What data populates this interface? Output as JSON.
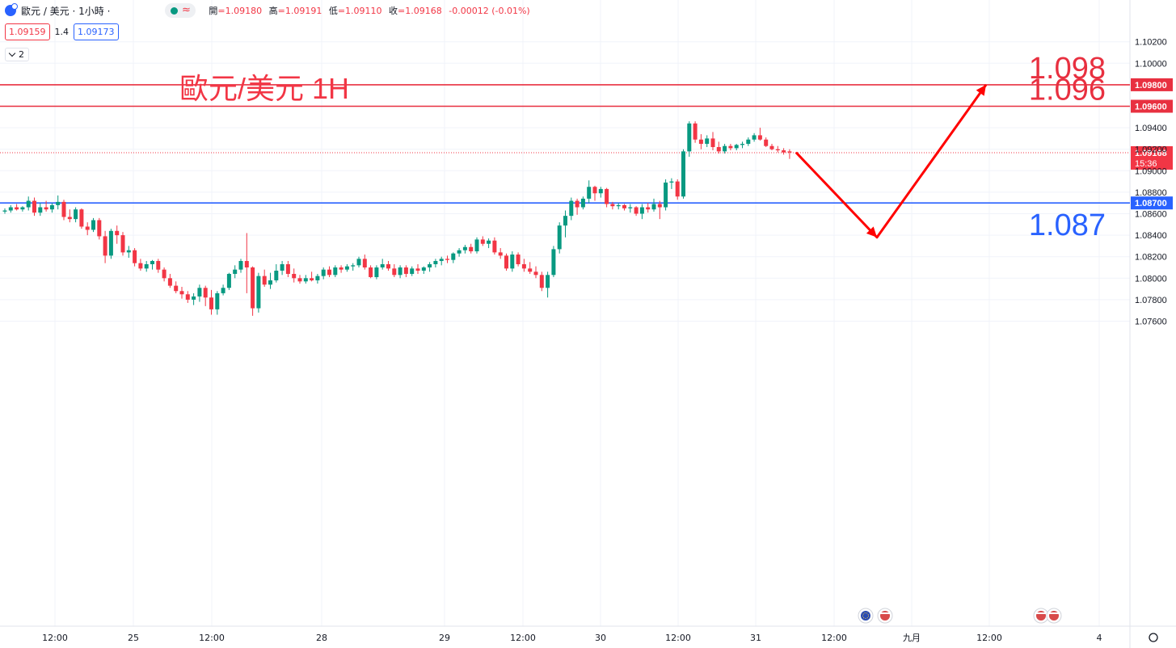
{
  "header": {
    "symbol": "歐元 / 美元 · 1小時 ·",
    "open_label": "開",
    "open": "=1.09180",
    "high_label": "高",
    "high": "=1.09191",
    "low_label": "低",
    "low": "=1.09110",
    "close_label": "收",
    "close": "=1.09168",
    "change": "-0.00012 (-0.01%)",
    "wave_icon": "≈"
  },
  "quote": {
    "sell": "1.09159",
    "spread": "1.4",
    "buy": "1.09173"
  },
  "indicators_toggle": "2",
  "colors": {
    "up": "#089981",
    "down": "#f23645",
    "support": "#2962ff",
    "resistance": "#e83040",
    "arrow": "#ff0000"
  },
  "chart_data": {
    "type": "candlestick",
    "title": "歐元/美元 1H",
    "y_axis": {
      "ticks": [
        "1.10200",
        "1.10000",
        "1.09400",
        "1.09200",
        "1.09000",
        "1.08800",
        "1.08600",
        "1.08400",
        "1.08200",
        "1.08000",
        "1.07800",
        "1.07600"
      ],
      "ylim": [
        1.0743,
        1.1037
      ]
    },
    "x_axis": {
      "ticks": [
        "12:00",
        "25",
        "12:00",
        "28",
        "29",
        "12:00",
        "30",
        "12:00",
        "31",
        "12:00",
        "九月",
        "12:00",
        "4"
      ]
    },
    "last_price": {
      "value": "1.09168",
      "countdown": "15:36"
    },
    "levels": [
      {
        "value": "1.09800",
        "label": "1.098",
        "kind": "resistance"
      },
      {
        "value": "1.09600",
        "label": "1.096",
        "kind": "resistance"
      },
      {
        "value": "1.08700",
        "label": "1.087",
        "kind": "support"
      }
    ],
    "projection_arrow": [
      [
        1.0917,
        1.0838
      ],
      [
        1.0838,
        1.098
      ]
    ],
    "candles": [
      [
        1.0862,
        1.0865,
        1.086,
        1.0863
      ],
      [
        1.0863,
        1.0868,
        1.0861,
        1.0866
      ],
      [
        1.0866,
        1.0869,
        1.0863,
        1.0864
      ],
      [
        1.0864,
        1.0867,
        1.0862,
        1.0866
      ],
      [
        1.0866,
        1.0876,
        1.0863,
        1.0872
      ],
      [
        1.0872,
        1.0875,
        1.0858,
        1.0861
      ],
      [
        1.0861,
        1.087,
        1.0858,
        1.0866
      ],
      [
        1.0866,
        1.0872,
        1.0862,
        1.0864
      ],
      [
        1.0864,
        1.087,
        1.0861,
        1.0868
      ],
      [
        1.0868,
        1.0877,
        1.0864,
        1.0871
      ],
      [
        1.0871,
        1.0873,
        1.0854,
        1.0857
      ],
      [
        1.0857,
        1.0864,
        1.0852,
        1.0855
      ],
      [
        1.0855,
        1.0866,
        1.0852,
        1.0864
      ],
      [
        1.0864,
        1.0865,
        1.0846,
        1.0848
      ],
      [
        1.0848,
        1.0852,
        1.084,
        1.0845
      ],
      [
        1.0845,
        1.0856,
        1.0843,
        1.0854
      ],
      [
        1.0854,
        1.0856,
        1.0836,
        1.0839
      ],
      [
        1.0839,
        1.0844,
        1.0814,
        1.0821
      ],
      [
        1.0821,
        1.0846,
        1.0818,
        1.0844
      ],
      [
        1.0844,
        1.0849,
        1.0832,
        1.084
      ],
      [
        1.084,
        1.0843,
        1.0821,
        1.0824
      ],
      [
        1.0824,
        1.083,
        1.0819,
        1.0826
      ],
      [
        1.0826,
        1.0828,
        1.0811,
        1.0814
      ],
      [
        1.0814,
        1.0818,
        1.0807,
        1.0809
      ],
      [
        1.0809,
        1.0816,
        1.0806,
        1.0813
      ],
      [
        1.0813,
        1.0817,
        1.0808,
        1.0816
      ],
      [
        1.0816,
        1.0818,
        1.0805,
        1.0808
      ],
      [
        1.0808,
        1.081,
        1.0797,
        1.08
      ],
      [
        1.08,
        1.0804,
        1.0791,
        1.0793
      ],
      [
        1.0793,
        1.0797,
        1.0786,
        1.0788
      ],
      [
        1.0788,
        1.0792,
        1.0781,
        1.0785
      ],
      [
        1.0785,
        1.0788,
        1.0777,
        1.078
      ],
      [
        1.078,
        1.0786,
        1.0775,
        1.0783
      ],
      [
        1.0783,
        1.0794,
        1.0778,
        1.0791
      ],
      [
        1.0791,
        1.0793,
        1.0774,
        1.0782
      ],
      [
        1.0782,
        1.0789,
        1.0766,
        1.0771
      ],
      [
        1.0771,
        1.0788,
        1.0766,
        1.0786
      ],
      [
        1.0786,
        1.0794,
        1.0784,
        1.0791
      ],
      [
        1.0791,
        1.0805,
        1.0789,
        1.0804
      ],
      [
        1.0804,
        1.0812,
        1.08,
        1.0808
      ],
      [
        1.0808,
        1.0818,
        1.0805,
        1.0816
      ],
      [
        1.0816,
        1.0842,
        1.0786,
        1.081
      ],
      [
        1.081,
        1.0811,
        1.0765,
        1.0772
      ],
      [
        1.0772,
        1.0805,
        1.0768,
        1.0802
      ],
      [
        1.0802,
        1.0808,
        1.0792,
        1.0794
      ],
      [
        1.0794,
        1.0805,
        1.079,
        1.0798
      ],
      [
        1.0798,
        1.0813,
        1.0796,
        1.0807
      ],
      [
        1.0807,
        1.0816,
        1.0803,
        1.0813
      ],
      [
        1.0813,
        1.0816,
        1.0801,
        1.0804
      ],
      [
        1.0804,
        1.0809,
        1.0796,
        1.08
      ],
      [
        1.08,
        1.0803,
        1.0795,
        1.0797
      ],
      [
        1.0797,
        1.0803,
        1.0795,
        1.08
      ],
      [
        1.08,
        1.0806,
        1.0797,
        1.0798
      ],
      [
        1.0798,
        1.0804,
        1.0795,
        1.0802
      ],
      [
        1.0802,
        1.081,
        1.0799,
        1.0808
      ],
      [
        1.0808,
        1.0811,
        1.0801,
        1.0803
      ],
      [
        1.0803,
        1.0812,
        1.0801,
        1.081
      ],
      [
        1.081,
        1.0812,
        1.0805,
        1.0808
      ],
      [
        1.0808,
        1.0813,
        1.0806,
        1.0811
      ],
      [
        1.0811,
        1.0814,
        1.0807,
        1.0812
      ],
      [
        1.0812,
        1.082,
        1.081,
        1.0818
      ],
      [
        1.0818,
        1.0822,
        1.0808,
        1.081
      ],
      [
        1.081,
        1.0812,
        1.08,
        1.0801
      ],
      [
        1.0801,
        1.0812,
        1.0799,
        1.081
      ],
      [
        1.081,
        1.0818,
        1.0808,
        1.0813
      ],
      [
        1.0813,
        1.0816,
        1.0807,
        1.0809
      ],
      [
        1.0809,
        1.0813,
        1.0801,
        1.0803
      ],
      [
        1.0803,
        1.0812,
        1.08,
        1.081
      ],
      [
        1.081,
        1.0812,
        1.0801,
        1.0804
      ],
      [
        1.0804,
        1.0811,
        1.0802,
        1.0809
      ],
      [
        1.0809,
        1.0813,
        1.0804,
        1.0807
      ],
      [
        1.0807,
        1.0811,
        1.0804,
        1.081
      ],
      [
        1.081,
        1.0815,
        1.0806,
        1.0813
      ],
      [
        1.0813,
        1.0818,
        1.081,
        1.0816
      ],
      [
        1.0816,
        1.082,
        1.0812,
        1.0818
      ],
      [
        1.0818,
        1.0821,
        1.0814,
        1.0817
      ],
      [
        1.0817,
        1.0824,
        1.0814,
        1.0823
      ],
      [
        1.0823,
        1.0828,
        1.082,
        1.0826
      ],
      [
        1.0826,
        1.0831,
        1.0823,
        1.0829
      ],
      [
        1.0829,
        1.0832,
        1.0823,
        1.0825
      ],
      [
        1.0825,
        1.0838,
        1.0823,
        1.0836
      ],
      [
        1.0836,
        1.0839,
        1.083,
        1.0832
      ],
      [
        1.0832,
        1.0837,
        1.0828,
        1.0835
      ],
      [
        1.0835,
        1.0838,
        1.0822,
        1.0824
      ],
      [
        1.0824,
        1.0828,
        1.0818,
        1.0821
      ],
      [
        1.0821,
        1.0823,
        1.0807,
        1.0809
      ],
      [
        1.0809,
        1.0825,
        1.0806,
        1.0822
      ],
      [
        1.0822,
        1.0824,
        1.0811,
        1.0813
      ],
      [
        1.0813,
        1.0818,
        1.0806,
        1.0809
      ],
      [
        1.0809,
        1.0815,
        1.0804,
        1.0806
      ],
      [
        1.0806,
        1.0811,
        1.08,
        1.0803
      ],
      [
        1.0803,
        1.0806,
        1.0788,
        1.0791
      ],
      [
        1.0791,
        1.0806,
        1.0782,
        1.0803
      ],
      [
        1.0803,
        1.083,
        1.0801,
        1.0827
      ],
      [
        1.0827,
        1.0852,
        1.0823,
        1.0849
      ],
      [
        1.0849,
        1.0863,
        1.0838,
        1.0858
      ],
      [
        1.0858,
        1.0875,
        1.0854,
        1.0872
      ],
      [
        1.0872,
        1.0874,
        1.0859,
        1.0866
      ],
      [
        1.0866,
        1.0876,
        1.0864,
        1.0874
      ],
      [
        1.0874,
        1.0891,
        1.087,
        1.0885
      ],
      [
        1.0885,
        1.0886,
        1.0872,
        1.0879
      ],
      [
        1.0879,
        1.0885,
        1.0875,
        1.0883
      ],
      [
        1.0883,
        1.0884,
        1.0866,
        1.0869
      ],
      [
        1.0869,
        1.0871,
        1.0864,
        1.0867
      ],
      [
        1.0867,
        1.087,
        1.0864,
        1.0868
      ],
      [
        1.0868,
        1.0869,
        1.0863,
        1.0865
      ],
      [
        1.0865,
        1.0869,
        1.0861,
        1.0866
      ],
      [
        1.0866,
        1.0867,
        1.0858,
        1.086
      ],
      [
        1.086,
        1.0869,
        1.0855,
        1.0866
      ],
      [
        1.0866,
        1.087,
        1.0861,
        1.0864
      ],
      [
        1.0864,
        1.0874,
        1.0862,
        1.0869
      ],
      [
        1.0869,
        1.0872,
        1.0855,
        1.0866
      ],
      [
        1.0866,
        1.0892,
        1.0863,
        1.0889
      ],
      [
        1.0889,
        1.0893,
        1.0883,
        1.089
      ],
      [
        1.089,
        1.0892,
        1.0873,
        1.0876
      ],
      [
        1.0876,
        1.092,
        1.0874,
        1.0918
      ],
      [
        1.0918,
        1.0946,
        1.0913,
        1.0944
      ],
      [
        1.0944,
        1.0946,
        1.0926,
        1.0929
      ],
      [
        1.0929,
        1.0934,
        1.092,
        1.0925
      ],
      [
        1.0925,
        1.0933,
        1.0922,
        1.093
      ],
      [
        1.093,
        1.0936,
        1.0919,
        1.0922
      ],
      [
        1.0922,
        1.0927,
        1.0916,
        1.0918
      ],
      [
        1.0918,
        1.0925,
        1.0916,
        1.0923
      ],
      [
        1.0923,
        1.0925,
        1.0919,
        1.0921
      ],
      [
        1.0921,
        1.0925,
        1.0919,
        1.0924
      ],
      [
        1.0924,
        1.0927,
        1.0921,
        1.0925
      ],
      [
        1.0925,
        1.0931,
        1.0923,
        1.0929
      ],
      [
        1.0929,
        1.0935,
        1.0927,
        1.0933
      ],
      [
        1.0933,
        1.094,
        1.0928,
        1.0929
      ],
      [
        1.0929,
        1.0931,
        1.0922,
        1.0923
      ],
      [
        1.0923,
        1.0925,
        1.0919,
        1.092
      ],
      [
        1.092,
        1.0923,
        1.0917,
        1.0919
      ],
      [
        1.0919,
        1.0921,
        1.0915,
        1.0917
      ],
      [
        1.0918,
        1.092,
        1.0911,
        1.0917
      ]
    ]
  }
}
